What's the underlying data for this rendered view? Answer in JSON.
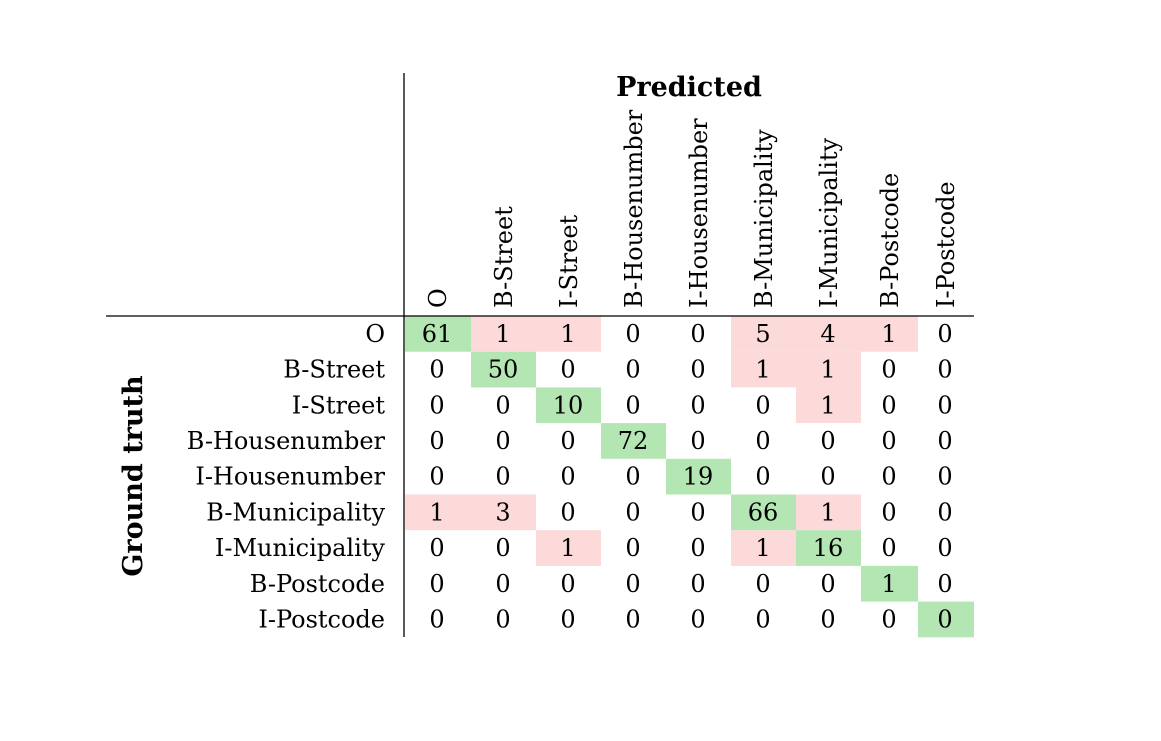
{
  "chart_data": {
    "type": "heatmap",
    "title": "",
    "xlabel": "Predicted",
    "ylabel": "Ground truth",
    "x_categories": [
      "O",
      "B-Street",
      "I-Street",
      "B-Housenumber",
      "I-Housenumber",
      "B-Municipality",
      "I-Municipality",
      "B-Postcode",
      "I-Postcode"
    ],
    "y_categories": [
      "O",
      "B-Street",
      "I-Street",
      "B-Housenumber",
      "I-Housenumber",
      "B-Municipality",
      "I-Municipality",
      "B-Postcode",
      "I-Postcode"
    ],
    "values": [
      [
        61,
        1,
        1,
        0,
        0,
        5,
        4,
        1,
        0
      ],
      [
        0,
        50,
        0,
        0,
        0,
        1,
        1,
        0,
        0
      ],
      [
        0,
        0,
        10,
        0,
        0,
        0,
        1,
        0,
        0
      ],
      [
        0,
        0,
        0,
        72,
        0,
        0,
        0,
        0,
        0
      ],
      [
        0,
        0,
        0,
        0,
        19,
        0,
        0,
        0,
        0
      ],
      [
        1,
        3,
        0,
        0,
        0,
        66,
        1,
        0,
        0
      ],
      [
        0,
        0,
        1,
        0,
        0,
        1,
        16,
        0,
        0
      ],
      [
        0,
        0,
        0,
        0,
        0,
        0,
        0,
        1,
        0
      ],
      [
        0,
        0,
        0,
        0,
        0,
        0,
        0,
        0,
        0
      ]
    ],
    "colors": {
      "diagonal": "#b4e6b4",
      "misclassified": "#fcdada",
      "text": "#000000",
      "rule": "#000000"
    }
  }
}
